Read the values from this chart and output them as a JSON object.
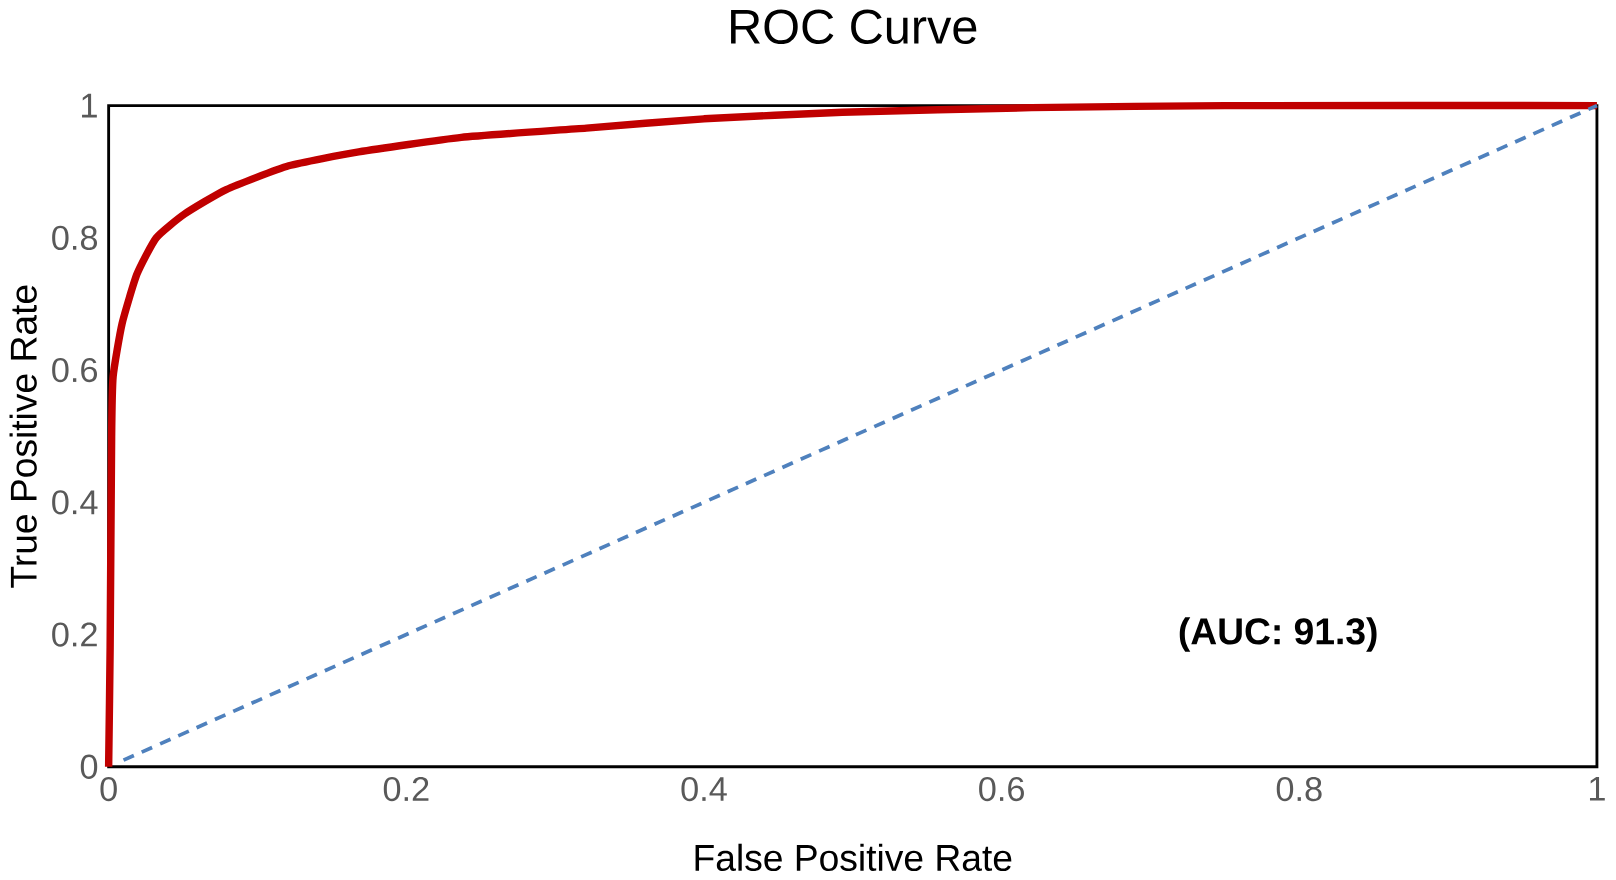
{
  "chart_data": {
    "type": "line",
    "title": "ROC Curve",
    "xlabel": "False Positive Rate",
    "ylabel": "True Positive Rate",
    "annotations": [
      "(AUC: 91.3)"
    ],
    "xlim": [
      0,
      1
    ],
    "ylim": [
      0,
      1
    ],
    "xticks": [
      0,
      0.2,
      0.4,
      0.6,
      0.8,
      1
    ],
    "yticks": [
      0,
      0.2,
      0.4,
      0.6,
      0.8,
      1
    ],
    "grid": false,
    "marker": "none",
    "series": [
      {
        "color": "#c00000",
        "line_style": "solid",
        "x": [
          0,
          0.001,
          0.002,
          0.003,
          0.009,
          0.019,
          0.032,
          0.051,
          0.079,
          0.121,
          0.168,
          0.237,
          0.321,
          0.4,
          0.493,
          0.62,
          0.75,
          1
        ],
        "values": [
          0,
          0.18,
          0.5,
          0.59,
          0.67,
          0.745,
          0.8,
          0.836,
          0.873,
          0.909,
          0.93,
          0.952,
          0.966,
          0.98,
          0.99,
          0.997,
          1,
          1
        ]
      },
      {
        "color": "#4f81bd",
        "line_style": "dashed",
        "x": [
          0.01,
          1
        ],
        "values": [
          0.01,
          1
        ]
      }
    ]
  }
}
